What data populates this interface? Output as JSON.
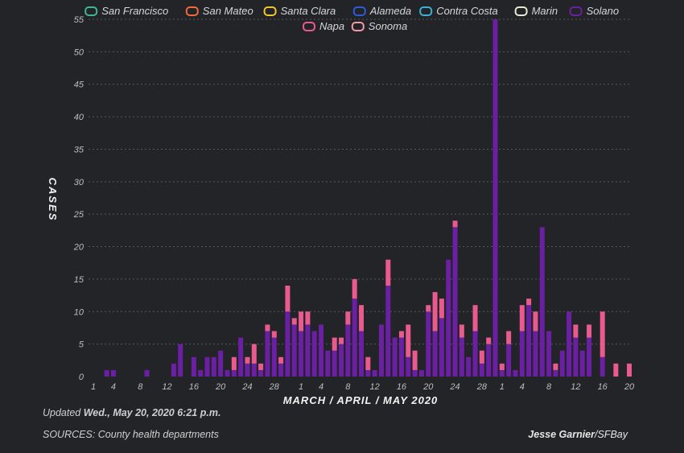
{
  "chart_data": {
    "type": "bar",
    "stacked": true,
    "xlabel": "MARCH / APRIL / MAY 2020",
    "ylabel": "CASES",
    "ylim": [
      0,
      55
    ],
    "yticks": [
      0,
      5,
      10,
      15,
      20,
      25,
      30,
      35,
      40,
      45,
      50,
      55
    ],
    "grid": "horizontal dashed",
    "legend_position": "top",
    "x_tick_labels": [
      "1",
      "4",
      "8",
      "12",
      "16",
      "20",
      "24",
      "28",
      "1",
      "4",
      "8",
      "12",
      "16",
      "20",
      "24",
      "28",
      "1",
      "4",
      "8",
      "12",
      "16",
      "20"
    ],
    "x_tick_dates": [
      "2020-03-01",
      "2020-03-04",
      "2020-03-08",
      "2020-03-12",
      "2020-03-16",
      "2020-03-20",
      "2020-03-24",
      "2020-03-28",
      "2020-04-01",
      "2020-04-04",
      "2020-04-08",
      "2020-04-12",
      "2020-04-16",
      "2020-04-20",
      "2020-04-24",
      "2020-04-28",
      "2020-05-01",
      "2020-05-04",
      "2020-05-08",
      "2020-05-12",
      "2020-05-16",
      "2020-05-20"
    ],
    "legend": [
      {
        "name": "San Francisco",
        "color": "#3fb68b"
      },
      {
        "name": "San Mateo",
        "color": "#f06a3c"
      },
      {
        "name": "Santa Clara",
        "color": "#f4c430"
      },
      {
        "name": "Alameda",
        "color": "#2f5bd6"
      },
      {
        "name": "Contra Costa",
        "color": "#3ab0d8"
      },
      {
        "name": "Marin",
        "color": "#e6ead0"
      },
      {
        "name": "Solano",
        "color": "#6b1fa3"
      },
      {
        "name": "Napa",
        "color": "#e95b8f"
      },
      {
        "name": "Sonoma",
        "color": "#f29aa6"
      }
    ],
    "x": [
      "2020-03-01",
      "2020-03-02",
      "2020-03-03",
      "2020-03-04",
      "2020-03-05",
      "2020-03-06",
      "2020-03-07",
      "2020-03-08",
      "2020-03-09",
      "2020-03-10",
      "2020-03-11",
      "2020-03-12",
      "2020-03-13",
      "2020-03-14",
      "2020-03-15",
      "2020-03-16",
      "2020-03-17",
      "2020-03-18",
      "2020-03-19",
      "2020-03-20",
      "2020-03-21",
      "2020-03-22",
      "2020-03-23",
      "2020-03-24",
      "2020-03-25",
      "2020-03-26",
      "2020-03-27",
      "2020-03-28",
      "2020-03-29",
      "2020-03-30",
      "2020-03-31",
      "2020-04-01",
      "2020-04-02",
      "2020-04-03",
      "2020-04-04",
      "2020-04-05",
      "2020-04-06",
      "2020-04-07",
      "2020-04-08",
      "2020-04-09",
      "2020-04-10",
      "2020-04-11",
      "2020-04-12",
      "2020-04-13",
      "2020-04-14",
      "2020-04-15",
      "2020-04-16",
      "2020-04-17",
      "2020-04-18",
      "2020-04-19",
      "2020-04-20",
      "2020-04-21",
      "2020-04-22",
      "2020-04-23",
      "2020-04-24",
      "2020-04-25",
      "2020-04-26",
      "2020-04-27",
      "2020-04-28",
      "2020-04-29",
      "2020-04-30",
      "2020-05-01",
      "2020-05-02",
      "2020-05-03",
      "2020-05-04",
      "2020-05-05",
      "2020-05-06",
      "2020-05-07",
      "2020-05-08",
      "2020-05-09",
      "2020-05-10",
      "2020-05-11",
      "2020-05-12",
      "2020-05-13",
      "2020-05-14",
      "2020-05-15",
      "2020-05-16",
      "2020-05-17",
      "2020-05-18",
      "2020-05-19",
      "2020-05-20"
    ],
    "series": [
      {
        "name": "Solano",
        "color": "#6b1fa3",
        "values": [
          0,
          0,
          1,
          1,
          0,
          0,
          0,
          0,
          1,
          0,
          0,
          0,
          2,
          5,
          0,
          3,
          1,
          3,
          3,
          4,
          1,
          1,
          6,
          2,
          2,
          1,
          7,
          6,
          2,
          10,
          8,
          7,
          8,
          7,
          8,
          4,
          4,
          5,
          8,
          12,
          7,
          1,
          1,
          8,
          14,
          6,
          6,
          3,
          1,
          1,
          10,
          7,
          9,
          18,
          23,
          6,
          3,
          7,
          2,
          5,
          55,
          1,
          5,
          1,
          7,
          11,
          7,
          23,
          7,
          1,
          4,
          10,
          6,
          4,
          6,
          0,
          3,
          0,
          0,
          0,
          0
        ]
      },
      {
        "name": "Napa",
        "color": "#e95b8f",
        "values": [
          0,
          0,
          0,
          0,
          0,
          0,
          0,
          0,
          0,
          0,
          0,
          0,
          0,
          0,
          0,
          0,
          0,
          0,
          0,
          0,
          0,
          2,
          0,
          1,
          3,
          1,
          1,
          1,
          1,
          4,
          1,
          3,
          2,
          0,
          0,
          0,
          2,
          1,
          2,
          3,
          4,
          2,
          0,
          0,
          4,
          0,
          1,
          5,
          3,
          0,
          1,
          6,
          3,
          0,
          1,
          2,
          0,
          4,
          2,
          1,
          0,
          1,
          2,
          0,
          4,
          1,
          3,
          0,
          0,
          1,
          0,
          0,
          2,
          0,
          2,
          0,
          7,
          0,
          2,
          0,
          2
        ]
      }
    ]
  },
  "footer": {
    "updated_prefix": "Updated ",
    "updated_value": "Wed., May 20, 2020 6:21 p.m.",
    "sources": "SOURCES: County health departments",
    "credit_name": "Jesse Garnier",
    "credit_org": "/SFBay"
  }
}
